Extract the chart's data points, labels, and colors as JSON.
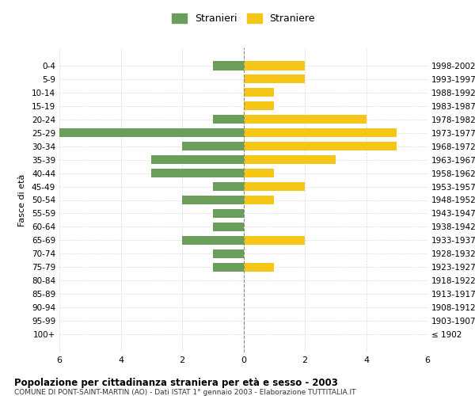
{
  "age_groups": [
    "100+",
    "95-99",
    "90-94",
    "85-89",
    "80-84",
    "75-79",
    "70-74",
    "65-69",
    "60-64",
    "55-59",
    "50-54",
    "45-49",
    "40-44",
    "35-39",
    "30-34",
    "25-29",
    "20-24",
    "15-19",
    "10-14",
    "5-9",
    "0-4"
  ],
  "birth_years": [
    "≤ 1902",
    "1903-1907",
    "1908-1912",
    "1913-1917",
    "1918-1922",
    "1923-1927",
    "1928-1932",
    "1933-1937",
    "1938-1942",
    "1943-1947",
    "1948-1952",
    "1953-1957",
    "1958-1962",
    "1963-1967",
    "1968-1972",
    "1973-1977",
    "1978-1982",
    "1983-1987",
    "1988-1992",
    "1993-1997",
    "1998-2002"
  ],
  "males": [
    0,
    0,
    0,
    0,
    0,
    1,
    1,
    2,
    1,
    1,
    2,
    1,
    3,
    3,
    2,
    6,
    1,
    0,
    0,
    0,
    1
  ],
  "females": [
    0,
    0,
    0,
    0,
    0,
    1,
    0,
    2,
    0,
    0,
    1,
    2,
    1,
    3,
    5,
    5,
    4,
    1,
    1,
    2,
    2
  ],
  "male_color": "#6a9e5a",
  "female_color": "#f5c518",
  "title": "Popolazione per cittadinanza straniera per età e sesso - 2003",
  "subtitle": "COMUNE DI PONT-SAINT-MARTIN (AO) - Dati ISTAT 1° gennaio 2003 - Elaborazione TUTTITALIA.IT",
  "left_axis_label": "Fasce di età",
  "legend_male": "Stranieri",
  "legend_female": "Straniere",
  "xlim": 6,
  "background_color": "#ffffff",
  "grid_color": "#cccccc"
}
